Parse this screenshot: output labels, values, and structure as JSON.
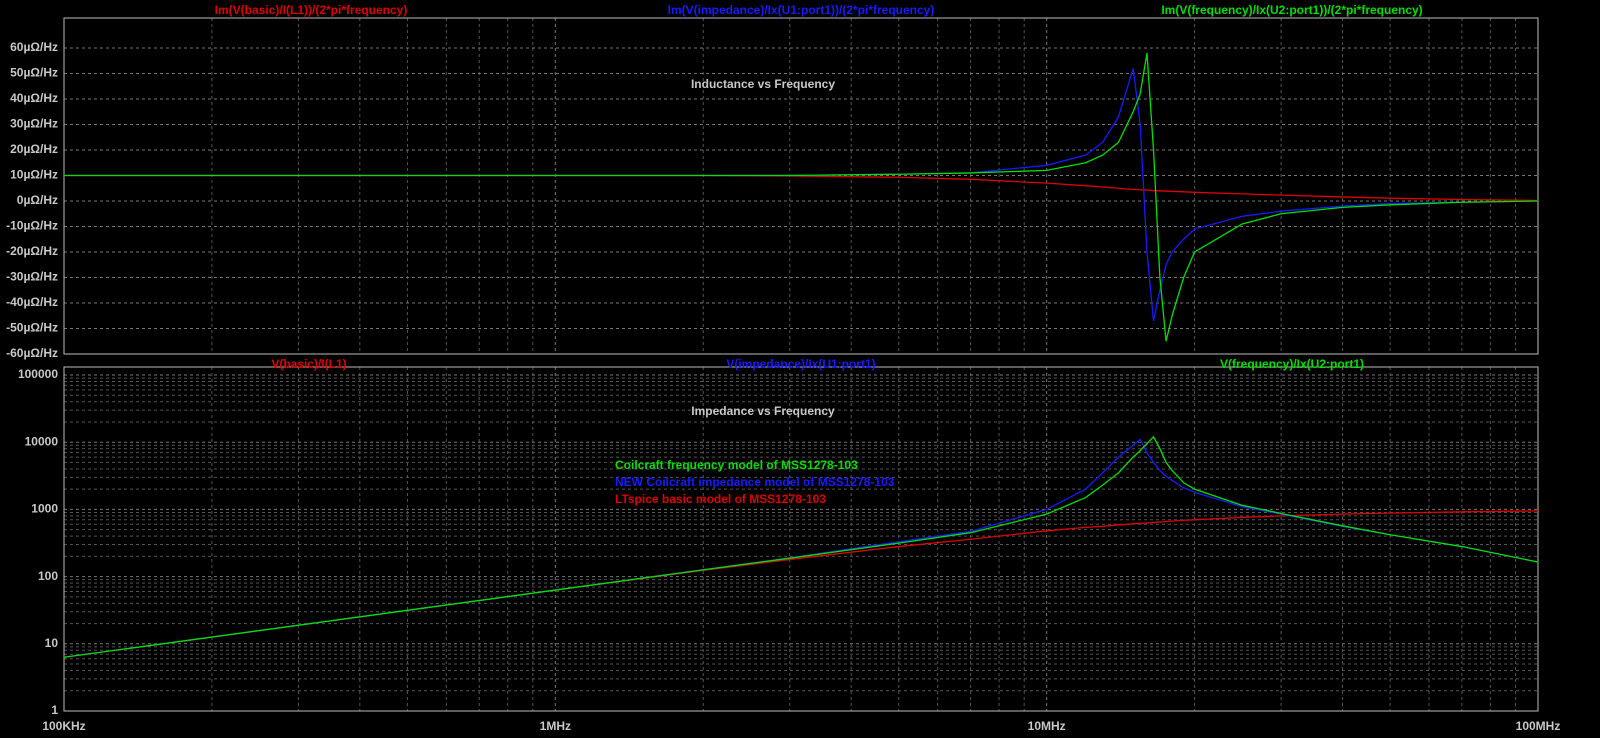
{
  "chart_data": [
    {
      "type": "line",
      "title": "Inductance vs Frequency",
      "x": [
        100000,
        200000,
        500000,
        1000000,
        2000000,
        3000000,
        5000000,
        7000000,
        10000000,
        12000000,
        13000000,
        14000000,
        15000000,
        15500000,
        16000000,
        16500000,
        17000000,
        17500000,
        18000000,
        19000000,
        20000000,
        25000000,
        30000000,
        40000000,
        50000000,
        70000000,
        100000000
      ],
      "xlim": [
        100000,
        100000000
      ],
      "x_log": true,
      "xticks": [
        100000,
        1000000,
        10000000,
        100000000
      ],
      "ylim": [
        -60,
        60
      ],
      "yticks": [
        {
          "value": 60,
          "label": "60µΩ/Hz"
        },
        {
          "value": 50,
          "label": "50µΩ/Hz"
        },
        {
          "value": 40,
          "label": "40µΩ/Hz"
        },
        {
          "value": 30,
          "label": "30µΩ/Hz"
        },
        {
          "value": 20,
          "label": "20µΩ/Hz"
        },
        {
          "value": 10,
          "label": "10µΩ/Hz"
        },
        {
          "value": 0,
          "label": "0µΩ/Hz"
        },
        {
          "value": -10,
          "label": "-10µΩ/Hz"
        },
        {
          "value": -20,
          "label": "-20µΩ/Hz"
        },
        {
          "value": -30,
          "label": "-30µΩ/Hz"
        },
        {
          "value": -40,
          "label": "-40µΩ/Hz"
        },
        {
          "value": -50,
          "label": "-50µΩ/Hz"
        },
        {
          "value": -60,
          "label": "-60µΩ/Hz"
        }
      ],
      "grid": true,
      "series": [
        {
          "name": "Im(V(basic)/I(L1))/(2*pi*frequency)",
          "color": "#e00000",
          "values": [
            10,
            10,
            10,
            10,
            10,
            9.8,
            9.3,
            8.5,
            7,
            6,
            5.5,
            5,
            4.5,
            4.4,
            4.3,
            4.1,
            4,
            3.9,
            3.8,
            3.6,
            3.4,
            2.8,
            2.3,
            1.6,
            1.1,
            0.6,
            0.2
          ]
        },
        {
          "name": "Im(V(impedance)/Ix(U1:port1))/(2*pi*frequency)",
          "color": "#1a1aff",
          "values": [
            10,
            10,
            10,
            10,
            10,
            10,
            10.5,
            11,
            14,
            18,
            23,
            33,
            52,
            30,
            -20,
            -47,
            -35,
            -25,
            -20,
            -15,
            -11,
            -6,
            -4,
            -2,
            -1,
            -0.5,
            0
          ]
        },
        {
          "name": "Im(V(frequency)/Ix(U2:port1))/(2*pi*frequency)",
          "color": "#00e000",
          "values": [
            10,
            10,
            10,
            10,
            10,
            10,
            10.5,
            11,
            12,
            15,
            18,
            23,
            35,
            42,
            58,
            20,
            -30,
            -55,
            -45,
            -30,
            -20,
            -9,
            -5,
            -2.5,
            -1.5,
            -0.5,
            0
          ]
        }
      ]
    },
    {
      "type": "line",
      "title": "Impedance vs Frequency",
      "annotations": [
        {
          "text": "Coilcraft frequency model of MSS1278-103",
          "color": "#00e000"
        },
        {
          "text": "NEW Coilcraft impedance model of MSS1278-103",
          "color": "#1a1aff"
        },
        {
          "text": "LTspice basic model of MSS1278-103",
          "color": "#e00000"
        }
      ],
      "x": [
        100000,
        200000,
        500000,
        1000000,
        2000000,
        3000000,
        5000000,
        7000000,
        10000000,
        12000000,
        13000000,
        14000000,
        15000000,
        15500000,
        16000000,
        16500000,
        17000000,
        17500000,
        18000000,
        19000000,
        20000000,
        25000000,
        30000000,
        40000000,
        50000000,
        70000000,
        100000000
      ],
      "xlim": [
        100000,
        100000000
      ],
      "x_log": true,
      "xticks": [
        {
          "value": 100000,
          "label": "100KHz"
        },
        {
          "value": 1000000,
          "label": "1MHz"
        },
        {
          "value": 10000000,
          "label": "10MHz"
        },
        {
          "value": 100000000,
          "label": "100MHz"
        }
      ],
      "ylim": [
        1,
        100000
      ],
      "y_log": true,
      "yticks": [
        1,
        10,
        100,
        1000,
        10000,
        100000
      ],
      "grid": true,
      "series": [
        {
          "name": "V(basic)/I(L1)",
          "color": "#e00000",
          "values": [
            6.3,
            12.6,
            31.5,
            63,
            124,
            180,
            280,
            360,
            480,
            540,
            560,
            590,
            610,
            620,
            630,
            640,
            650,
            660,
            670,
            690,
            700,
            760,
            800,
            850,
            880,
            920,
            950
          ]
        },
        {
          "name": "V(impedance)/Ix(U1:port1)",
          "color": "#1a1aff",
          "values": [
            6.3,
            12.6,
            31.5,
            63,
            127,
            190,
            330,
            470,
            1000,
            2000,
            3500,
            6000,
            9000,
            11000,
            7000,
            5000,
            3800,
            3100,
            2700,
            2100,
            1800,
            1100,
            850,
            560,
            420,
            280,
            165
          ]
        },
        {
          "name": "V(frequency)/Ix(U2:port1)",
          "color": "#00e000",
          "values": [
            6.3,
            12.6,
            31.5,
            63,
            126,
            188,
            315,
            450,
            850,
            1500,
            2300,
            3500,
            6000,
            7500,
            9500,
            12000,
            8000,
            5000,
            3800,
            2500,
            2000,
            1150,
            870,
            570,
            420,
            280,
            165
          ]
        }
      ]
    }
  ]
}
